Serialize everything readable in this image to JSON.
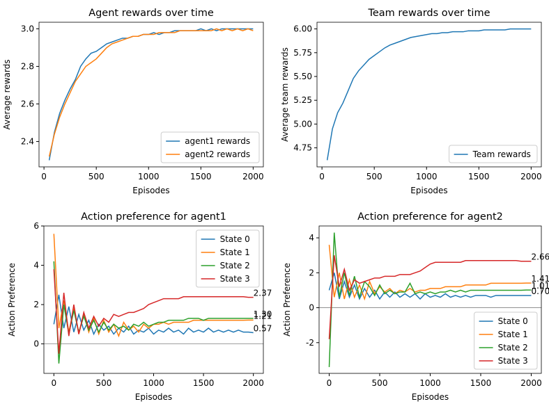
{
  "chart_data": [
    {
      "type": "line",
      "title": "Agent rewards over time",
      "xlabel": "Episodes",
      "ylabel": "Average rewards",
      "x": [
        50,
        100,
        150,
        200,
        250,
        300,
        350,
        400,
        450,
        500,
        550,
        600,
        650,
        700,
        750,
        800,
        850,
        900,
        950,
        1000,
        1050,
        1100,
        1150,
        1200,
        1250,
        1300,
        1350,
        1400,
        1450,
        1500,
        1550,
        1600,
        1650,
        1700,
        1750,
        1800,
        1850,
        1900,
        1950,
        2000
      ],
      "series": [
        {
          "name": "agent1 rewards",
          "color": "#1f77b4",
          "values": [
            2.3,
            2.45,
            2.55,
            2.62,
            2.68,
            2.73,
            2.8,
            2.84,
            2.87,
            2.88,
            2.9,
            2.92,
            2.93,
            2.94,
            2.95,
            2.95,
            2.96,
            2.96,
            2.97,
            2.97,
            2.98,
            2.97,
            2.98,
            2.98,
            2.99,
            2.99,
            2.99,
            2.99,
            2.99,
            3.0,
            2.99,
            3.0,
            2.99,
            3.0,
            3.0,
            3.0,
            3.0,
            3.0,
            3.0,
            3.0
          ]
        },
        {
          "name": "agent2 rewards",
          "color": "#ff7f0e",
          "values": [
            2.32,
            2.44,
            2.53,
            2.6,
            2.66,
            2.72,
            2.76,
            2.8,
            2.82,
            2.84,
            2.87,
            2.9,
            2.92,
            2.93,
            2.94,
            2.95,
            2.96,
            2.96,
            2.97,
            2.97,
            2.97,
            2.98,
            2.98,
            2.98,
            2.98,
            2.99,
            2.99,
            2.99,
            2.99,
            2.99,
            2.99,
            2.99,
            3.0,
            2.99,
            3.0,
            2.99,
            3.0,
            2.99,
            3.0,
            2.99
          ]
        }
      ],
      "xlim": [
        -47.5,
        2097.5
      ],
      "xticks": [
        0,
        500,
        1000,
        1500,
        2000
      ],
      "ylim": [
        2.265,
        3.035
      ],
      "yticks": [
        2.4,
        2.6,
        2.8,
        {
          "value": 3,
          "label": "3.0"
        }
      ],
      "legend": "lower right"
    },
    {
      "type": "line",
      "title": "Team rewards over time",
      "xlabel": "Episodes",
      "ylabel": "Average team rewards",
      "x": [
        50,
        100,
        150,
        200,
        250,
        300,
        350,
        400,
        450,
        500,
        550,
        600,
        650,
        700,
        750,
        800,
        850,
        900,
        950,
        1000,
        1050,
        1100,
        1150,
        1200,
        1250,
        1300,
        1350,
        1400,
        1450,
        1500,
        1550,
        1600,
        1650,
        1700,
        1750,
        1800,
        1850,
        1900,
        1950,
        2000
      ],
      "series": [
        {
          "name": "Team rewards",
          "color": "#1f77b4",
          "values": [
            4.62,
            4.95,
            5.12,
            5.22,
            5.35,
            5.48,
            5.56,
            5.62,
            5.68,
            5.72,
            5.76,
            5.8,
            5.83,
            5.85,
            5.87,
            5.89,
            5.91,
            5.92,
            5.93,
            5.94,
            5.95,
            5.95,
            5.96,
            5.96,
            5.97,
            5.97,
            5.97,
            5.98,
            5.98,
            5.98,
            5.99,
            5.99,
            5.99,
            5.99,
            5.99,
            6.0,
            6.0,
            6.0,
            6.0,
            6.0
          ]
        }
      ],
      "xlim": [
        -47.5,
        2097.5
      ],
      "xticks": [
        0,
        500,
        1000,
        1500,
        2000
      ],
      "ylim": [
        4.55,
        6.07
      ],
      "yticks": [
        4.75,
        {
          "value": 5,
          "label": "5.00"
        },
        5.25,
        {
          "value": 5.5,
          "label": "5.50"
        },
        5.75,
        {
          "value": 6,
          "label": "6.00"
        }
      ],
      "legend": "lower right"
    },
    {
      "type": "line",
      "title": "Action preference for agent1",
      "xlabel": "Episodes",
      "ylabel": "Action Preference",
      "x": [
        0,
        50,
        100,
        150,
        200,
        250,
        300,
        350,
        400,
        450,
        500,
        550,
        600,
        650,
        700,
        750,
        800,
        850,
        900,
        950,
        1000,
        1050,
        1100,
        1150,
        1200,
        1250,
        1300,
        1350,
        1400,
        1450,
        1500,
        1550,
        1600,
        1650,
        1700,
        1750,
        1800,
        1850,
        1900,
        1950,
        2000
      ],
      "series": [
        {
          "name": "State 0",
          "color": "#1f77b4",
          "values": [
            1.0,
            2.5,
            0.8,
            1.9,
            0.6,
            1.5,
            0.7,
            1.2,
            0.5,
            1.0,
            0.7,
            0.9,
            0.5,
            0.8,
            0.6,
            0.9,
            0.5,
            0.7,
            0.6,
            0.8,
            0.5,
            0.7,
            0.6,
            0.8,
            0.6,
            0.7,
            0.5,
            0.8,
            0.6,
            0.7,
            0.6,
            0.8,
            0.6,
            0.7,
            0.6,
            0.7,
            0.6,
            0.7,
            0.6,
            0.6,
            0.57
          ]
        },
        {
          "name": "State 1",
          "color": "#ff7f0e",
          "values": [
            5.6,
            0.8,
            2.2,
            0.6,
            1.8,
            0.5,
            1.5,
            0.6,
            1.3,
            0.5,
            1.2,
            0.6,
            1.0,
            0.4,
            1.1,
            0.7,
            0.9,
            0.6,
            1.0,
            0.8,
            1.0,
            1.0,
            1.1,
            1.0,
            1.1,
            1.1,
            1.1,
            1.1,
            1.2,
            1.2,
            1.2,
            1.2,
            1.2,
            1.2,
            1.2,
            1.2,
            1.2,
            1.2,
            1.2,
            1.21,
            1.21
          ]
        },
        {
          "name": "State 2",
          "color": "#2ca02c",
          "values": [
            4.2,
            -1.0,
            2.0,
            0.5,
            1.7,
            0.6,
            1.4,
            0.7,
            1.2,
            0.6,
            1.1,
            0.7,
            1.0,
            0.8,
            0.9,
            0.7,
            1.0,
            0.9,
            1.1,
            0.9,
            1.0,
            1.1,
            1.1,
            1.2,
            1.2,
            1.2,
            1.2,
            1.3,
            1.3,
            1.3,
            1.2,
            1.3,
            1.3,
            1.3,
            1.3,
            1.3,
            1.3,
            1.3,
            1.3,
            1.3,
            1.3
          ]
        },
        {
          "name": "State 3",
          "color": "#d62728",
          "values": [
            3.8,
            -0.5,
            2.6,
            0.4,
            2.0,
            0.5,
            1.6,
            0.8,
            1.4,
            0.9,
            1.3,
            1.1,
            1.5,
            1.4,
            1.5,
            1.6,
            1.6,
            1.7,
            1.8,
            2.0,
            2.1,
            2.2,
            2.3,
            2.3,
            2.3,
            2.3,
            2.4,
            2.4,
            2.4,
            2.4,
            2.4,
            2.4,
            2.4,
            2.4,
            2.4,
            2.4,
            2.4,
            2.4,
            2.4,
            2.37,
            2.37
          ]
        }
      ],
      "annotations": [
        {
          "text": "2.37",
          "x": 2000,
          "y": 2.37
        },
        {
          "text": "1.30",
          "x": 2000,
          "y": 1.3
        },
        {
          "text": "1.21",
          "x": 2000,
          "y": 1.21
        },
        {
          "text": "0.57",
          "x": 2000,
          "y": 0.57
        }
      ],
      "hline": 0,
      "xlim": [
        -100,
        2100
      ],
      "xticks": [
        0,
        500,
        1000,
        1500,
        2000
      ],
      "ylim": [
        -1.5,
        6
      ],
      "yticks": [
        0,
        2,
        4,
        6
      ],
      "legend": "upper right"
    },
    {
      "type": "line",
      "title": "Action preference for agent2",
      "xlabel": "Episodes",
      "ylabel": "Action Preference",
      "x": [
        0,
        50,
        100,
        150,
        200,
        250,
        300,
        350,
        400,
        450,
        500,
        550,
        600,
        650,
        700,
        750,
        800,
        850,
        900,
        950,
        1000,
        1050,
        1100,
        1150,
        1200,
        1250,
        1300,
        1350,
        1400,
        1450,
        1500,
        1550,
        1600,
        1650,
        1700,
        1750,
        1800,
        1850,
        1900,
        1950,
        2000
      ],
      "series": [
        {
          "name": "State 0",
          "color": "#1f77b4",
          "values": [
            1.0,
            2.0,
            0.5,
            1.5,
            0.6,
            1.3,
            0.5,
            1.1,
            0.6,
            1.0,
            0.5,
            0.9,
            0.6,
            0.9,
            0.6,
            0.8,
            0.6,
            0.8,
            0.5,
            0.8,
            0.6,
            0.7,
            0.6,
            0.8,
            0.6,
            0.7,
            0.6,
            0.7,
            0.6,
            0.7,
            0.7,
            0.7,
            0.6,
            0.7,
            0.7,
            0.7,
            0.7,
            0.7,
            0.7,
            0.7,
            0.7
          ]
        },
        {
          "name": "State 1",
          "color": "#ff7f0e",
          "values": [
            3.6,
            0.6,
            2.0,
            0.5,
            1.6,
            0.6,
            1.3,
            0.5,
            1.5,
            0.8,
            1.2,
            0.9,
            1.1,
            0.8,
            1.0,
            0.9,
            1.1,
            0.9,
            1.0,
            1.0,
            1.1,
            1.1,
            1.1,
            1.2,
            1.2,
            1.2,
            1.2,
            1.3,
            1.3,
            1.3,
            1.3,
            1.3,
            1.4,
            1.4,
            1.4,
            1.4,
            1.4,
            1.4,
            1.4,
            1.41,
            1.41
          ]
        },
        {
          "name": "State 2",
          "color": "#2ca02c",
          "values": [
            -3.4,
            4.3,
            0.6,
            2.0,
            0.7,
            1.8,
            0.6,
            1.5,
            1.2,
            0.7,
            1.3,
            0.8,
            1.0,
            0.8,
            0.9,
            0.9,
            1.4,
            0.8,
            0.9,
            0.8,
            0.9,
            0.8,
            0.9,
            0.9,
            1.0,
            0.9,
            1.0,
            0.9,
            1.0,
            1.0,
            1.0,
            1.0,
            1.0,
            1.0,
            1.0,
            1.0,
            1.0,
            1.0,
            1.0,
            1.01,
            1.01
          ]
        },
        {
          "name": "State 3",
          "color": "#d62728",
          "values": [
            -1.8,
            3.0,
            1.2,
            2.2,
            1.0,
            1.6,
            1.4,
            1.5,
            1.6,
            1.7,
            1.7,
            1.8,
            1.8,
            1.8,
            1.9,
            1.9,
            1.9,
            2.0,
            2.1,
            2.3,
            2.5,
            2.6,
            2.6,
            2.6,
            2.6,
            2.6,
            2.6,
            2.7,
            2.7,
            2.7,
            2.7,
            2.7,
            2.7,
            2.7,
            2.7,
            2.7,
            2.7,
            2.7,
            2.66,
            2.66,
            2.66
          ]
        }
      ],
      "annotations": [
        {
          "text": "2.66",
          "x": 2000,
          "y": 2.66
        },
        {
          "text": "1.41",
          "x": 2000,
          "y": 1.41
        },
        {
          "text": "1.01",
          "x": 2000,
          "y": 1.01
        },
        {
          "text": "0.70",
          "x": 2000,
          "y": 0.7
        }
      ],
      "hline": 0,
      "xlim": [
        -100,
        2100
      ],
      "xticks": [
        0,
        500,
        1000,
        1500,
        2000
      ],
      "ylim": [
        -3.76,
        4.68
      ],
      "yticks": [
        -2,
        0,
        2,
        4
      ],
      "legend": "lower right"
    }
  ]
}
